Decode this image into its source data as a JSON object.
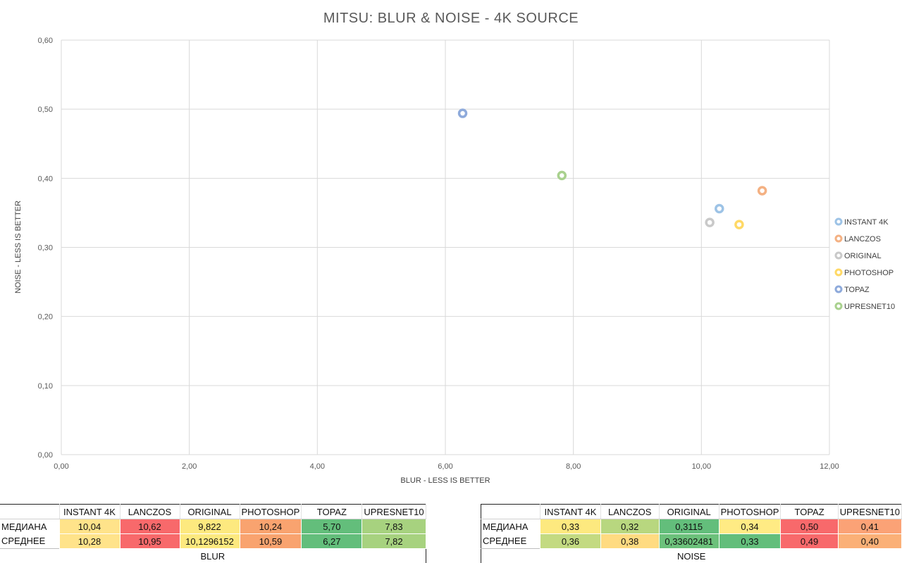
{
  "chart_data": {
    "type": "scatter",
    "title": "MITSU: BLUR & NOISE - 4K SOURCE",
    "xlabel": "BLUR - LESS IS BETTER",
    "ylabel": "NOISE - LESS IS BETTER",
    "xlim": [
      0,
      12
    ],
    "ylim": [
      0,
      0.6
    ],
    "xticks": [
      "0,00",
      "2,00",
      "4,00",
      "6,00",
      "8,00",
      "10,00",
      "12,00"
    ],
    "yticks": [
      "0,00",
      "0,10",
      "0,20",
      "0,30",
      "0,40",
      "0,50",
      "0,60"
    ],
    "grid": true,
    "legend_position": "right",
    "series": [
      {
        "name": "INSTANT 4K",
        "color": "#9dc3e6",
        "x": 10.28,
        "y": 0.356
      },
      {
        "name": "LANCZOS",
        "color": "#f4b183",
        "x": 10.95,
        "y": 0.382
      },
      {
        "name": "ORIGINAL",
        "color": "#c9c9c9",
        "x": 10.13,
        "y": 0.336
      },
      {
        "name": "PHOTOSHOP",
        "color": "#ffd966",
        "x": 10.59,
        "y": 0.333
      },
      {
        "name": "TOPAZ",
        "color": "#8eaadb",
        "x": 6.27,
        "y": 0.494
      },
      {
        "name": "UPRESNET10",
        "color": "#a9d18e",
        "x": 7.82,
        "y": 0.404
      }
    ]
  },
  "tables": {
    "columns": [
      "INSTANT 4K",
      "LANCZOS",
      "ORIGINAL",
      "PHOTOSHOP",
      "TOPAZ",
      "UPRESNET10"
    ],
    "blur": {
      "caption": "BLUR",
      "rows": [
        {
          "label": "МЕДИАНА",
          "values": [
            "10,04",
            "10,62",
            "9,822",
            "10,24",
            "5,70",
            "7,83"
          ],
          "colors": [
            "#ffe38a",
            "#f8696b",
            "#fde97f",
            "#f9a36f",
            "#63be7b",
            "#a7d27f"
          ]
        },
        {
          "label": "СРЕДНЕЕ",
          "values": [
            "10,28",
            "10,95",
            "10,1296152",
            "10,59",
            "6,27",
            "7,82"
          ],
          "colors": [
            "#ffe38a",
            "#f8696b",
            "#fde97f",
            "#f9a36f",
            "#63be7b",
            "#a7d27f"
          ]
        }
      ]
    },
    "noise": {
      "caption": "NOISE",
      "rows": [
        {
          "label": "МЕДИАНА",
          "values": [
            "0,33",
            "0,32",
            "0,3115",
            "0,34",
            "0,50",
            "0,41"
          ],
          "colors": [
            "#fde97f",
            "#b8d77f",
            "#63be7b",
            "#ffeb84",
            "#f8696b",
            "#fba276"
          ]
        },
        {
          "label": "СРЕДНЕЕ",
          "values": [
            "0,36",
            "0,38",
            "0,33602481",
            "0,33",
            "0,49",
            "0,40"
          ],
          "colors": [
            "#c3da81",
            "#ffdb81",
            "#6cc17b",
            "#63be7b",
            "#f8696b",
            "#fbb077"
          ]
        }
      ]
    }
  }
}
